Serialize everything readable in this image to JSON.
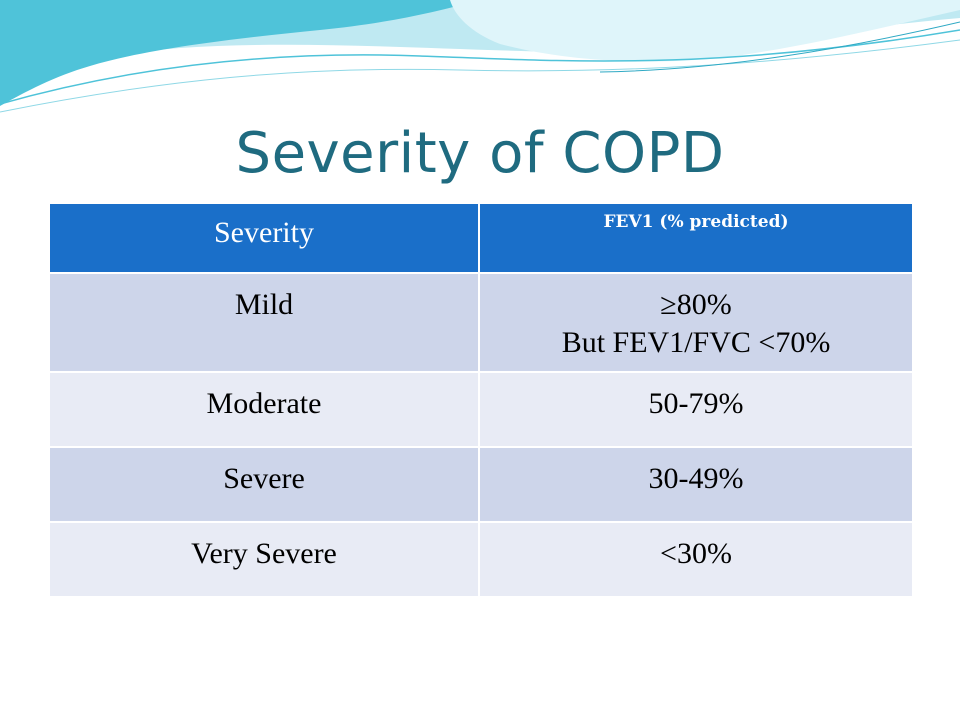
{
  "slide": {
    "title": "Severity of COPD"
  },
  "table": {
    "headers": [
      "Severity",
      "FEV1 (% predicted)"
    ],
    "rows": [
      {
        "severity": "Mild",
        "fev1": [
          "≥80%",
          "But FEV1/FVC <70%"
        ]
      },
      {
        "severity": "Moderate",
        "fev1": [
          "50-79%"
        ]
      },
      {
        "severity": "Severe",
        "fev1": [
          "30-49%"
        ]
      },
      {
        "severity": "Very Severe",
        "fev1": [
          "<30%"
        ]
      }
    ]
  },
  "colors": {
    "title": "#1f6b80",
    "header_bg": "#1a6fc9",
    "row_band_dark": "#cdd5ea",
    "row_band_light": "#e8ebf5",
    "wave_cyan": "#4fc3d9",
    "wave_light": "#bfe9f2"
  }
}
